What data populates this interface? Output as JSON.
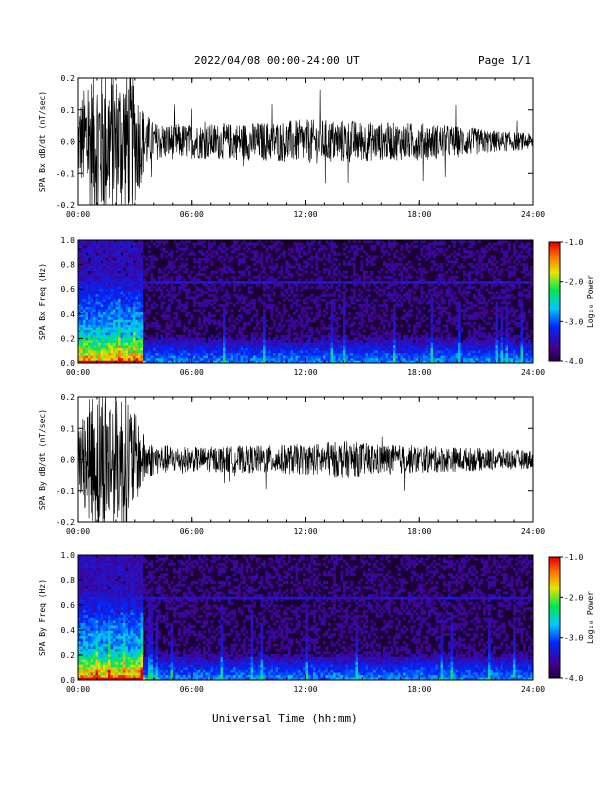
{
  "header": {
    "title": "2022/04/08  00:00-24:00 UT",
    "page": "Page 1/1"
  },
  "footer": {
    "xlabel": "Universal Time (hh:mm)"
  },
  "colors": {
    "trace": "#000000",
    "background": "#ffffff",
    "spectrogram_bg": "#1a0033"
  },
  "chart_data": [
    {
      "type": "line",
      "ylabel": "SPA Bx dB/dt (nT/sec)",
      "xlim": [
        "00:00",
        "24:00"
      ],
      "xticks": [
        "00:00",
        "06:00",
        "12:00",
        "18:00",
        "24:00"
      ],
      "ylim": [
        -0.2,
        0.2
      ],
      "yticks": [
        "-0.2",
        "-0.1",
        "0.0",
        "0.1",
        "0.2"
      ],
      "envelope": {
        "hours": [
          0,
          0.5,
          1,
          1.5,
          2,
          2.5,
          3,
          3.5,
          4,
          6,
          9,
          12,
          14,
          16,
          18,
          20,
          22,
          24
        ],
        "amplitude": [
          0.12,
          0.2,
          0.25,
          0.25,
          0.22,
          0.25,
          0.2,
          0.1,
          0.06,
          0.055,
          0.06,
          0.07,
          0.07,
          0.06,
          0.06,
          0.05,
          0.035,
          0.025
        ]
      }
    },
    {
      "type": "heatmap",
      "ylabel": "SPA Bx Freq (Hz)",
      "xlim": [
        "00:00",
        "24:00"
      ],
      "xticks": [
        "00:00",
        "06:00",
        "12:00",
        "18:00",
        "24:00"
      ],
      "ylim": [
        0.0,
        1.0
      ],
      "yticks": [
        "0.0",
        "0.2",
        "0.4",
        "0.6",
        "0.8",
        "1.0"
      ],
      "colorbar": {
        "label": "Log₁₀ Power",
        "range": [
          -4.0,
          -1.0
        ],
        "ticks": [
          "-1.0",
          "-2.0",
          "-3.0",
          "-4.0"
        ]
      }
    },
    {
      "type": "line",
      "ylabel": "SPA By dB/dt (nT/sec)",
      "xlim": [
        "00:00",
        "24:00"
      ],
      "xticks": [
        "00:00",
        "06:00",
        "12:00",
        "18:00",
        "24:00"
      ],
      "ylim": [
        -0.2,
        0.2
      ],
      "yticks": [
        "-0.2",
        "-0.1",
        "0.0",
        "0.1",
        "0.2"
      ],
      "envelope": {
        "hours": [
          0,
          0.5,
          1,
          1.5,
          2,
          2.5,
          3,
          3.5,
          4,
          6,
          9,
          12,
          14,
          16,
          18,
          20,
          22,
          24
        ],
        "amplitude": [
          0.1,
          0.18,
          0.25,
          0.25,
          0.2,
          0.25,
          0.15,
          0.08,
          0.05,
          0.04,
          0.045,
          0.05,
          0.06,
          0.05,
          0.045,
          0.04,
          0.035,
          0.03
        ]
      }
    },
    {
      "type": "heatmap",
      "ylabel": "SPA By Freq (Hz)",
      "xlim": [
        "00:00",
        "24:00"
      ],
      "xticks": [
        "00:00",
        "06:00",
        "12:00",
        "18:00",
        "24:00"
      ],
      "ylim": [
        0.0,
        1.0
      ],
      "yticks": [
        "0.0",
        "0.2",
        "0.4",
        "0.6",
        "0.8",
        "1.0"
      ],
      "colorbar": {
        "label": "Log₁₀ Power",
        "range": [
          -4.0,
          -1.0
        ],
        "ticks": [
          "-1.0",
          "-2.0",
          "-3.0",
          "-4.0"
        ]
      }
    }
  ]
}
